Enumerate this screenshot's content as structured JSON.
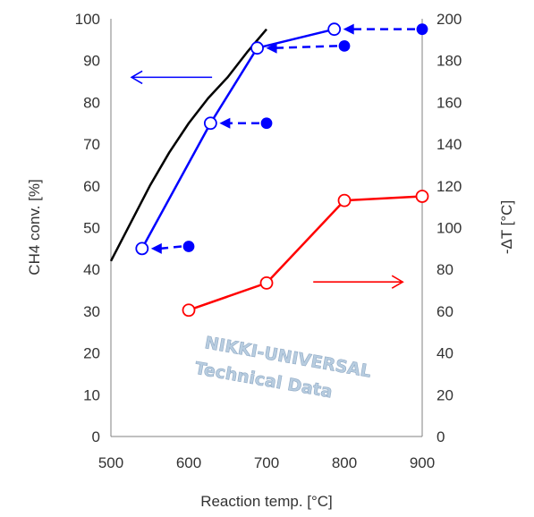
{
  "chart_data": {
    "type": "line",
    "title": "",
    "xlabel": "Reaction temp. [°C]",
    "ylabel_left": "CH4 conv. [%]",
    "ylabel_right": "-ΔT [°C]",
    "xlim": [
      500,
      900
    ],
    "xticks": [
      500,
      600,
      700,
      800,
      900
    ],
    "ylim_left": [
      0,
      100
    ],
    "yticks_left": [
      0,
      10,
      20,
      30,
      40,
      50,
      60,
      70,
      80,
      90,
      100
    ],
    "ylim_right": [
      0,
      200
    ],
    "yticks_right": [
      0,
      20,
      40,
      60,
      80,
      100,
      120,
      140,
      160,
      180,
      200
    ],
    "grid": false,
    "series": [
      {
        "axis": "left",
        "color": "#000000",
        "marker": "none",
        "x": [
          500,
          525,
          550,
          575,
          600,
          625,
          650,
          675,
          700
        ],
        "y": [
          42,
          51,
          60,
          68,
          75,
          81,
          86,
          92,
          97.5
        ]
      },
      {
        "axis": "left",
        "color": "#0000ff",
        "marker": "open-circle",
        "x": [
          540,
          628,
          688,
          787
        ],
        "y": [
          45,
          75,
          93,
          97.5
        ]
      },
      {
        "axis": "left",
        "color": "#0000ff",
        "marker": "filled-circle",
        "x": [
          600,
          700,
          800,
          900
        ],
        "y": [
          45.5,
          75,
          93.5,
          97.5
        ]
      },
      {
        "axis": "right",
        "color": "#ff0000",
        "marker": "open-circle",
        "x": [
          600,
          700,
          800,
          900
        ],
        "y": [
          60.5,
          73.5,
          113,
          115
        ]
      }
    ],
    "shift_arrows": {
      "color": "#0000ff",
      "style": "dashed",
      "pairs": [
        {
          "from": [
            600,
            45.5
          ],
          "to": [
            540,
            45
          ]
        },
        {
          "from": [
            700,
            75
          ],
          "to": [
            628,
            75
          ]
        },
        {
          "from": [
            800,
            93.5
          ],
          "to": [
            688,
            93
          ]
        },
        {
          "from": [
            900,
            97.5
          ],
          "to": [
            787,
            97.5
          ]
        }
      ]
    },
    "axis_arrows": [
      {
        "color": "#0000ff",
        "points_to": "left",
        "at": [
          630,
          86
        ],
        "length": 90
      },
      {
        "color": "#ff0000",
        "points_to": "right",
        "at": [
          760,
          37
        ],
        "length": 100
      }
    ],
    "watermark": {
      "line1": "NIKKI-UNIVERSAL",
      "line2": "Technical Data",
      "color": "#b8cde0"
    }
  }
}
